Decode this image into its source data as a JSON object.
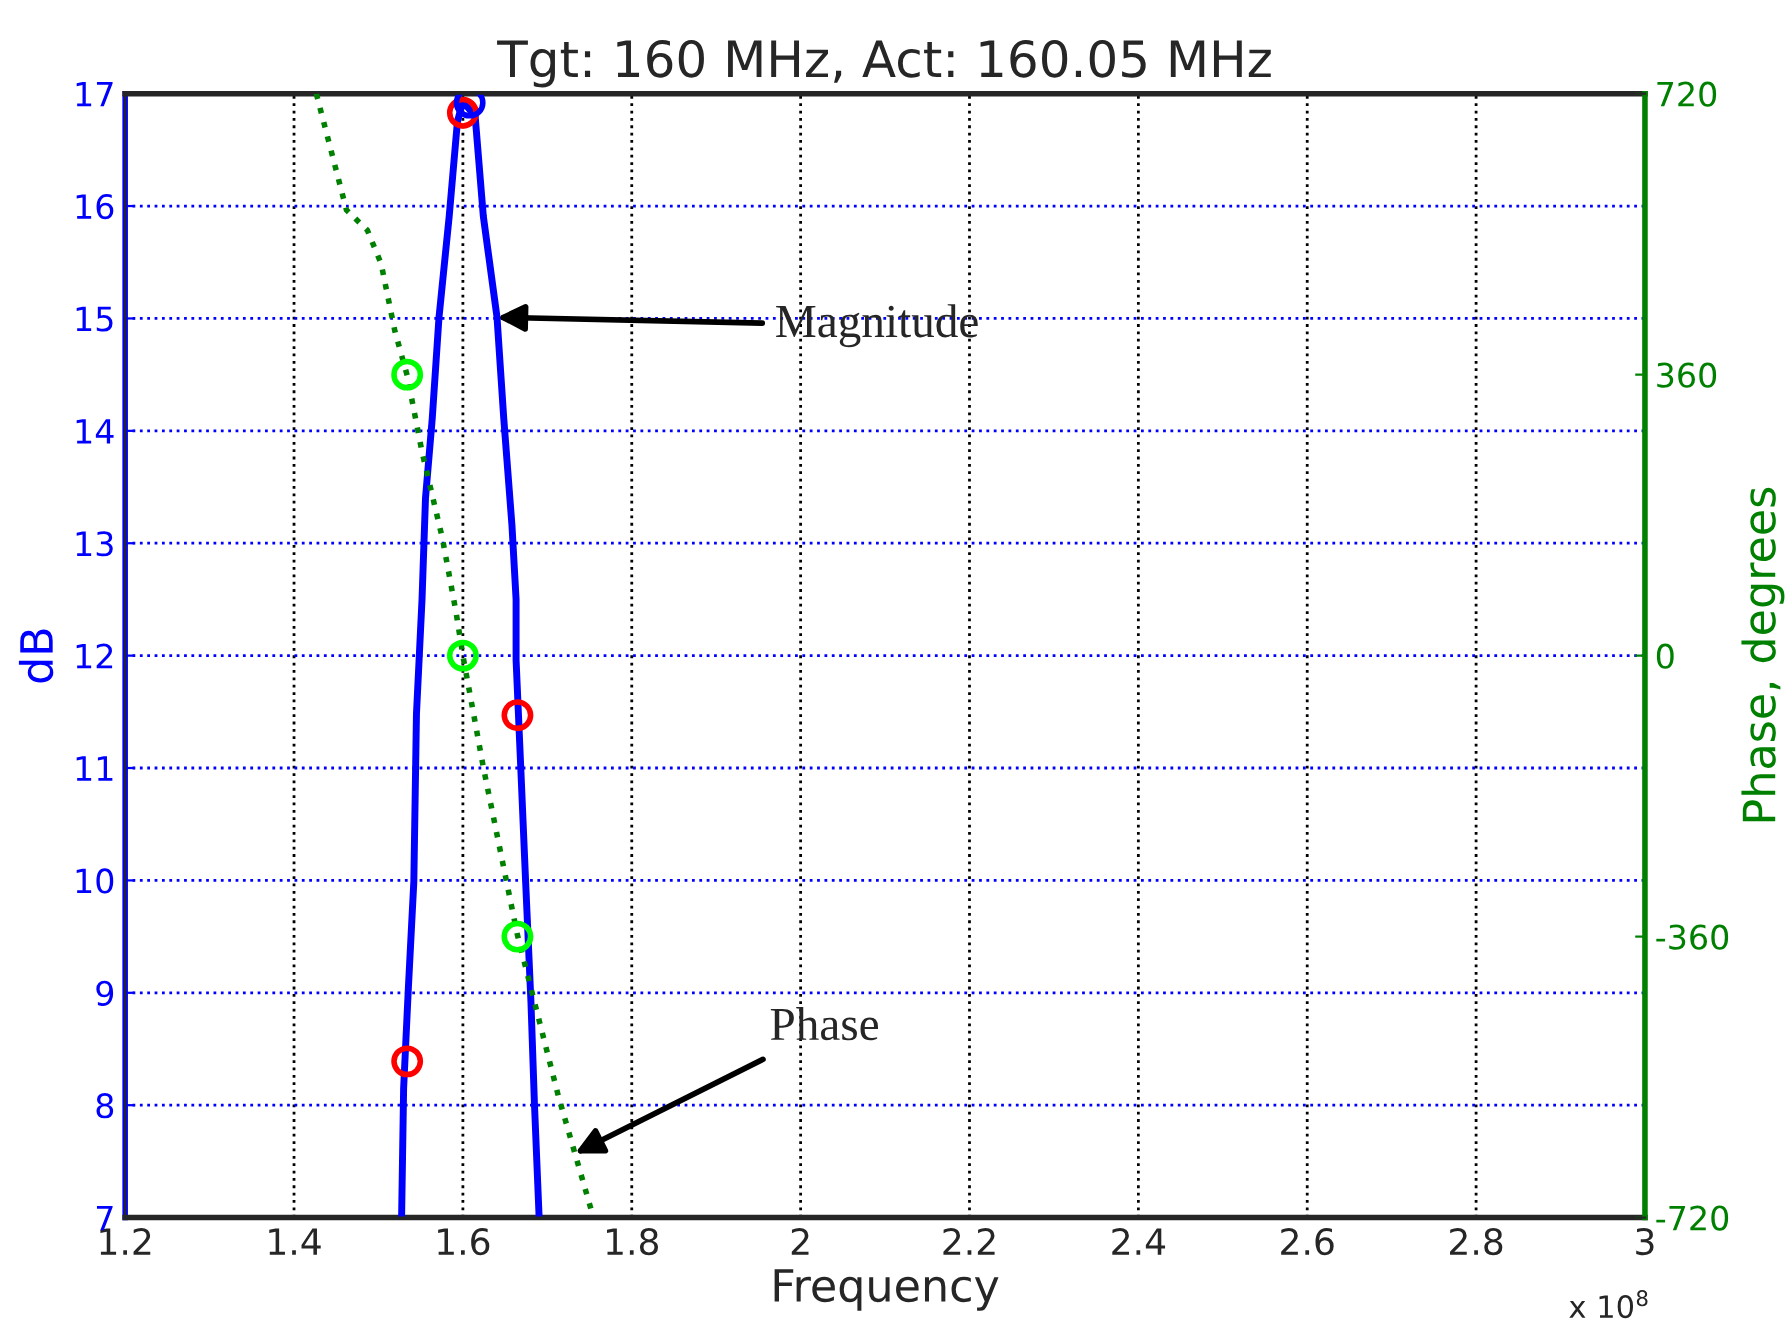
{
  "chart_data": {
    "type": "line",
    "title": "Tgt: 160 MHz, Act: 160.05 MHz",
    "xlabel": "Frequency",
    "ylabel": "dB",
    "y2label": "Phase, degrees",
    "xlim": [
      1.2,
      3
    ],
    "xticks": [
      1.2,
      1.4,
      1.6,
      1.8,
      2,
      2.2,
      2.4,
      2.6,
      2.8,
      3
    ],
    "ylim": [
      7,
      17
    ],
    "yticks": [
      7,
      8,
      9,
      10,
      11,
      12,
      13,
      14,
      15,
      16,
      17
    ],
    "y2lim": [
      -720,
      720
    ],
    "y2ticks": [
      -720,
      -360,
      0,
      360,
      720
    ],
    "grid": true,
    "legend": false,
    "series": [
      {
        "type": "line",
        "color": "#0000ff",
        "line_style": "solid",
        "marker": "none",
        "x": [
          1.5274,
          1.5298,
          1.5354,
          1.5419,
          1.545,
          1.5516,
          1.5557,
          1.5637,
          1.5717,
          1.5838,
          1.5935,
          1.6,
          1.6145,
          1.6242,
          1.6404,
          1.6484,
          1.6581,
          1.663,
          1.663,
          1.6685,
          1.6743,
          1.6806,
          1.6847,
          1.6903
        ],
        "values": [
          7.0,
          8.15,
          9.04,
          9.99,
          11.48,
          12.5,
          13.4,
          14.11,
          15.01,
          15.91,
          16.75,
          16.93,
          16.8,
          15.91,
          15.01,
          14.11,
          13.16,
          12.5,
          11.96,
          11.01,
          9.99,
          8.92,
          8.02,
          7.0
        ]
      },
      {
        "type": "line",
        "color": "#008000",
        "line_style": "dotted",
        "marker": "none",
        "axis": "y2",
        "x": [
          1.4264,
          1.4621,
          1.4869,
          1.5032,
          1.5194,
          1.534,
          1.5516,
          1.5758,
          1.592,
          1.6,
          1.6242,
          1.6484,
          1.6646,
          1.6888,
          1.713,
          1.7533
        ],
        "values": [
          720,
          571,
          545,
          502,
          416,
          359,
          261,
          150,
          55,
          0,
          -143,
          -272,
          -358,
          -461,
          -564,
          -715
        ]
      },
      {
        "type": "scatter",
        "color": "#ff0000",
        "marker": "circle",
        "x": [
          1.534,
          1.6,
          1.6646
        ],
        "values": [
          8.39,
          16.83,
          11.47
        ]
      },
      {
        "type": "scatter",
        "color": "#0000ff",
        "marker": "circle",
        "x": [
          1.608
        ],
        "values": [
          16.92
        ]
      },
      {
        "type": "scatter",
        "color": "#00ff00",
        "marker": "circle",
        "axis": "y2",
        "x": [
          1.534,
          1.6,
          1.6646
        ],
        "values": [
          360,
          0,
          -360
        ]
      }
    ],
    "annotations": [
      {
        "text": "Magnitude",
        "x": 1.6404,
        "y": 15.01
      },
      {
        "text": "Phase",
        "x": 1.7328,
        "y": 7.57
      },
      "x 10$^{8}$"
    ]
  }
}
